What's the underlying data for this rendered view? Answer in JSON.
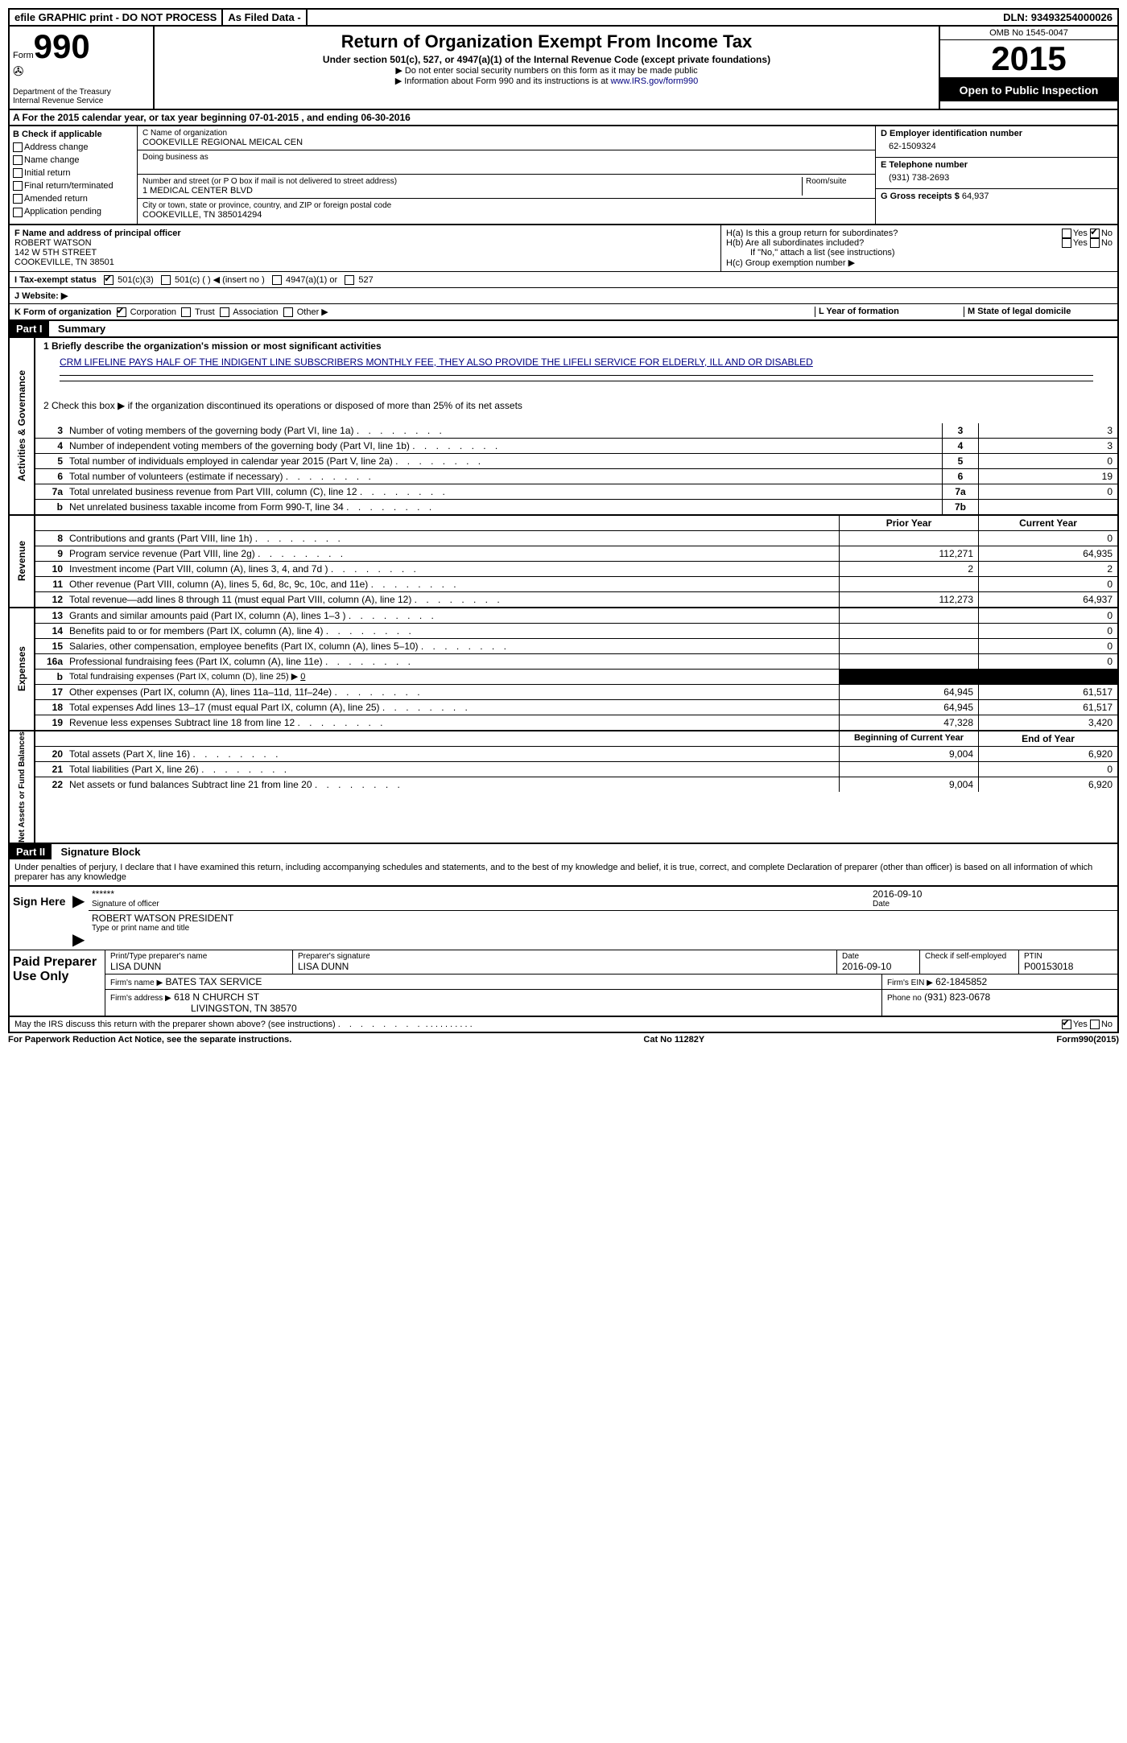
{
  "topbar": {
    "efile": "efile GRAPHIC print - DO NOT PROCESS",
    "asfiled": "As Filed Data -",
    "dln_label": "DLN:",
    "dln": "93493254000026"
  },
  "header": {
    "form_label": "Form",
    "form_num": "990",
    "dept1": "Department of the Treasury",
    "dept2": "Internal Revenue Service",
    "title": "Return of Organization Exempt From Income Tax",
    "subtitle": "Under section 501(c), 527, or 4947(a)(1) of the Internal Revenue Code (except private foundations)",
    "note1": "▶ Do not enter social security numbers on this form as it may be made public",
    "note2": "▶ Information about Form 990 and its instructions is at ",
    "link": "www.IRS.gov/form990",
    "omb": "OMB No 1545-0047",
    "year": "2015",
    "open": "Open to Public Inspection"
  },
  "rowA": {
    "text_prefix": "A  For the 2015 calendar year, or tax year beginning ",
    "begin": "07-01-2015",
    "mid": " , and ending ",
    "end": "06-30-2016"
  },
  "colB": {
    "label": "B Check if applicable",
    "items": [
      "Address change",
      "Name change",
      "Initial return",
      "Final return/terminated",
      "Amended return",
      "Application pending"
    ]
  },
  "colC": {
    "name_label": "C Name of organization",
    "name": "COOKEVILLE REGIONAL MEICAL CEN",
    "dba_label": "Doing business as",
    "addr_label": "Number and street (or P O  box if mail is not delivered to street address)",
    "room_label": "Room/suite",
    "addr": "1 MEDICAL CENTER BLVD",
    "city_label": "City or town, state or province, country, and ZIP or foreign postal code",
    "city": "COOKEVILLE, TN  385014294"
  },
  "colD": {
    "ein_label": "D Employer identification number",
    "ein": "62-1509324",
    "phone_label": "E Telephone number",
    "phone": "(931) 738-2693",
    "gross_label": "G Gross receipts $",
    "gross": "64,937"
  },
  "officer": {
    "label": "F  Name and address of principal officer",
    "name": "ROBERT WATSON",
    "addr1": "142 W 5TH STREET",
    "addr2": "COOKEVILLE, TN  38501"
  },
  "hsection": {
    "ha": "H(a)  Is this a group return for subordinates?",
    "hb": "H(b)  Are all subordinates included?",
    "hnote": "If \"No,\" attach a list  (see instructions)",
    "hc": "H(c)   Group exemption number ▶",
    "yes": "Yes",
    "no": "No"
  },
  "status": {
    "label": "I  Tax-exempt status",
    "opts": [
      "501(c)(3)",
      "501(c) (  ) ◀ (insert no )",
      "4947(a)(1) or",
      "527"
    ]
  },
  "website": {
    "label": "J  Website: ▶"
  },
  "formorg": {
    "k": "K Form of organization",
    "opts": [
      "Corporation",
      "Trust",
      "Association",
      "Other ▶"
    ],
    "l": "L Year of formation",
    "m": "M State of legal domicile"
  },
  "part1": {
    "label": "Part I",
    "title": "Summary",
    "line1_label": "1 Briefly describe the organization's mission or most significant activities",
    "mission": "CRM LIFELINE PAYS HALF OF THE INDIGENT LINE SUBSCRIBERS MONTHLY FEE, THEY ALSO PROVIDE THE LIFELI SERVICE FOR ELDERLY, ILL AND OR DISABLED",
    "line2": "2  Check this box ▶       if the organization discontinued its operations or disposed of more than 25% of its net assets",
    "governance_label": "Activities & Governance",
    "revenue_label": "Revenue",
    "expenses_label": "Expenses",
    "netassets_label": "Net Assets or Fund Balances",
    "lines_gov": [
      {
        "num": "3",
        "text": "Number of voting members of the governing body (Part VI, line 1a)",
        "box": "3",
        "val": "3"
      },
      {
        "num": "4",
        "text": "Number of independent voting members of the governing body (Part VI, line 1b)",
        "box": "4",
        "val": "3"
      },
      {
        "num": "5",
        "text": "Total number of individuals employed in calendar year 2015 (Part V, line 2a)",
        "box": "5",
        "val": "0"
      },
      {
        "num": "6",
        "text": "Total number of volunteers (estimate if necessary)",
        "box": "6",
        "val": "19"
      },
      {
        "num": "7a",
        "text": "Total unrelated business revenue from Part VIII, column (C), line 12",
        "box": "7a",
        "val": "0"
      },
      {
        "num": "b",
        "text": "Net unrelated business taxable income from Form 990-T, line 34",
        "box": "7b",
        "val": ""
      }
    ],
    "prior_year": "Prior Year",
    "current_year": "Current Year",
    "lines_rev": [
      {
        "num": "8",
        "text": "Contributions and grants (Part VIII, line 1h)",
        "prior": "",
        "curr": "0"
      },
      {
        "num": "9",
        "text": "Program service revenue (Part VIII, line 2g)",
        "prior": "112,271",
        "curr": "64,935"
      },
      {
        "num": "10",
        "text": "Investment income (Part VIII, column (A), lines 3, 4, and 7d )",
        "prior": "2",
        "curr": "2"
      },
      {
        "num": "11",
        "text": "Other revenue (Part VIII, column (A), lines 5, 6d, 8c, 9c, 10c, and 11e)",
        "prior": "",
        "curr": "0"
      },
      {
        "num": "12",
        "text": "Total revenue—add lines 8 through 11 (must equal Part VIII, column (A), line 12)",
        "prior": "112,273",
        "curr": "64,937"
      }
    ],
    "lines_exp": [
      {
        "num": "13",
        "text": "Grants and similar amounts paid (Part IX, column (A), lines 1–3 )",
        "prior": "",
        "curr": "0"
      },
      {
        "num": "14",
        "text": "Benefits paid to or for members (Part IX, column (A), line 4)",
        "prior": "",
        "curr": "0"
      },
      {
        "num": "15",
        "text": "Salaries, other compensation, employee benefits (Part IX, column (A), lines 5–10)",
        "prior": "",
        "curr": "0"
      },
      {
        "num": "16a",
        "text": "Professional fundraising fees (Part IX, column (A), line 11e)",
        "prior": "",
        "curr": "0"
      },
      {
        "num": "b",
        "text": "Total fundraising expenses (Part IX, column (D), line 25) ▶",
        "prior": "BLACK",
        "curr": "BLACK"
      },
      {
        "num": "17",
        "text": "Other expenses (Part IX, column (A), lines 11a–11d, 11f–24e)",
        "prior": "64,945",
        "curr": "61,517"
      },
      {
        "num": "18",
        "text": "Total expenses  Add lines 13–17 (must equal Part IX, column (A), line 25)",
        "prior": "64,945",
        "curr": "61,517"
      },
      {
        "num": "19",
        "text": "Revenue less expenses  Subtract line 18 from line 12",
        "prior": "47,328",
        "curr": "3,420"
      }
    ],
    "begin_year": "Beginning of Current Year",
    "end_year": "End of Year",
    "lines_net": [
      {
        "num": "20",
        "text": "Total assets (Part X, line 16)",
        "prior": "9,004",
        "curr": "6,920"
      },
      {
        "num": "21",
        "text": "Total liabilities (Part X, line 26)",
        "prior": "",
        "curr": "0"
      },
      {
        "num": "22",
        "text": "Net assets or fund balances  Subtract line 21 from line 20",
        "prior": "9,004",
        "curr": "6,920"
      }
    ],
    "fundraising_zero": "0"
  },
  "part2": {
    "label": "Part II",
    "title": "Signature Block",
    "perjury": "Under penalties of perjury, I declare that I have examined this return, including accompanying schedules and statements, and to the best of my knowledge and belief, it is true, correct, and complete  Declaration of preparer (other than officer) is based on all information of which preparer has any knowledge",
    "sign_here": "Sign Here",
    "stars": "******",
    "sig_officer": "Signature of officer",
    "date_label": "Date",
    "sig_date": "2016-09-10",
    "officer_name": "ROBERT WATSON PRESIDENT",
    "type_name": "Type or print name and title",
    "paid": "Paid Preparer Use Only",
    "prep_name_label": "Print/Type preparer's name",
    "prep_name": "LISA DUNN",
    "prep_sig_label": "Preparer's signature",
    "prep_sig": "LISA DUNN",
    "prep_date_label": "Date",
    "prep_date": "2016-09-10",
    "check_if": "Check        if self-employed",
    "ptin_label": "PTIN",
    "ptin": "P00153018",
    "firm_name_label": "Firm's name      ▶",
    "firm_name": "BATES TAX SERVICE",
    "firm_ein_label": "Firm's EIN ▶",
    "firm_ein": "62-1845852",
    "firm_addr_label": "Firm's address ▶",
    "firm_addr1": "618 N CHURCH ST",
    "firm_addr2": "LIVINGSTON, TN  38570",
    "phone_label": "Phone no",
    "phone": "(931) 823-0678",
    "discuss": "May the IRS discuss this return with the preparer shown above? (see instructions)"
  },
  "footer": {
    "paperwork": "For Paperwork Reduction Act Notice, see the separate instructions.",
    "cat": "Cat No  11282Y",
    "form": "Form 990 (2015)"
  }
}
